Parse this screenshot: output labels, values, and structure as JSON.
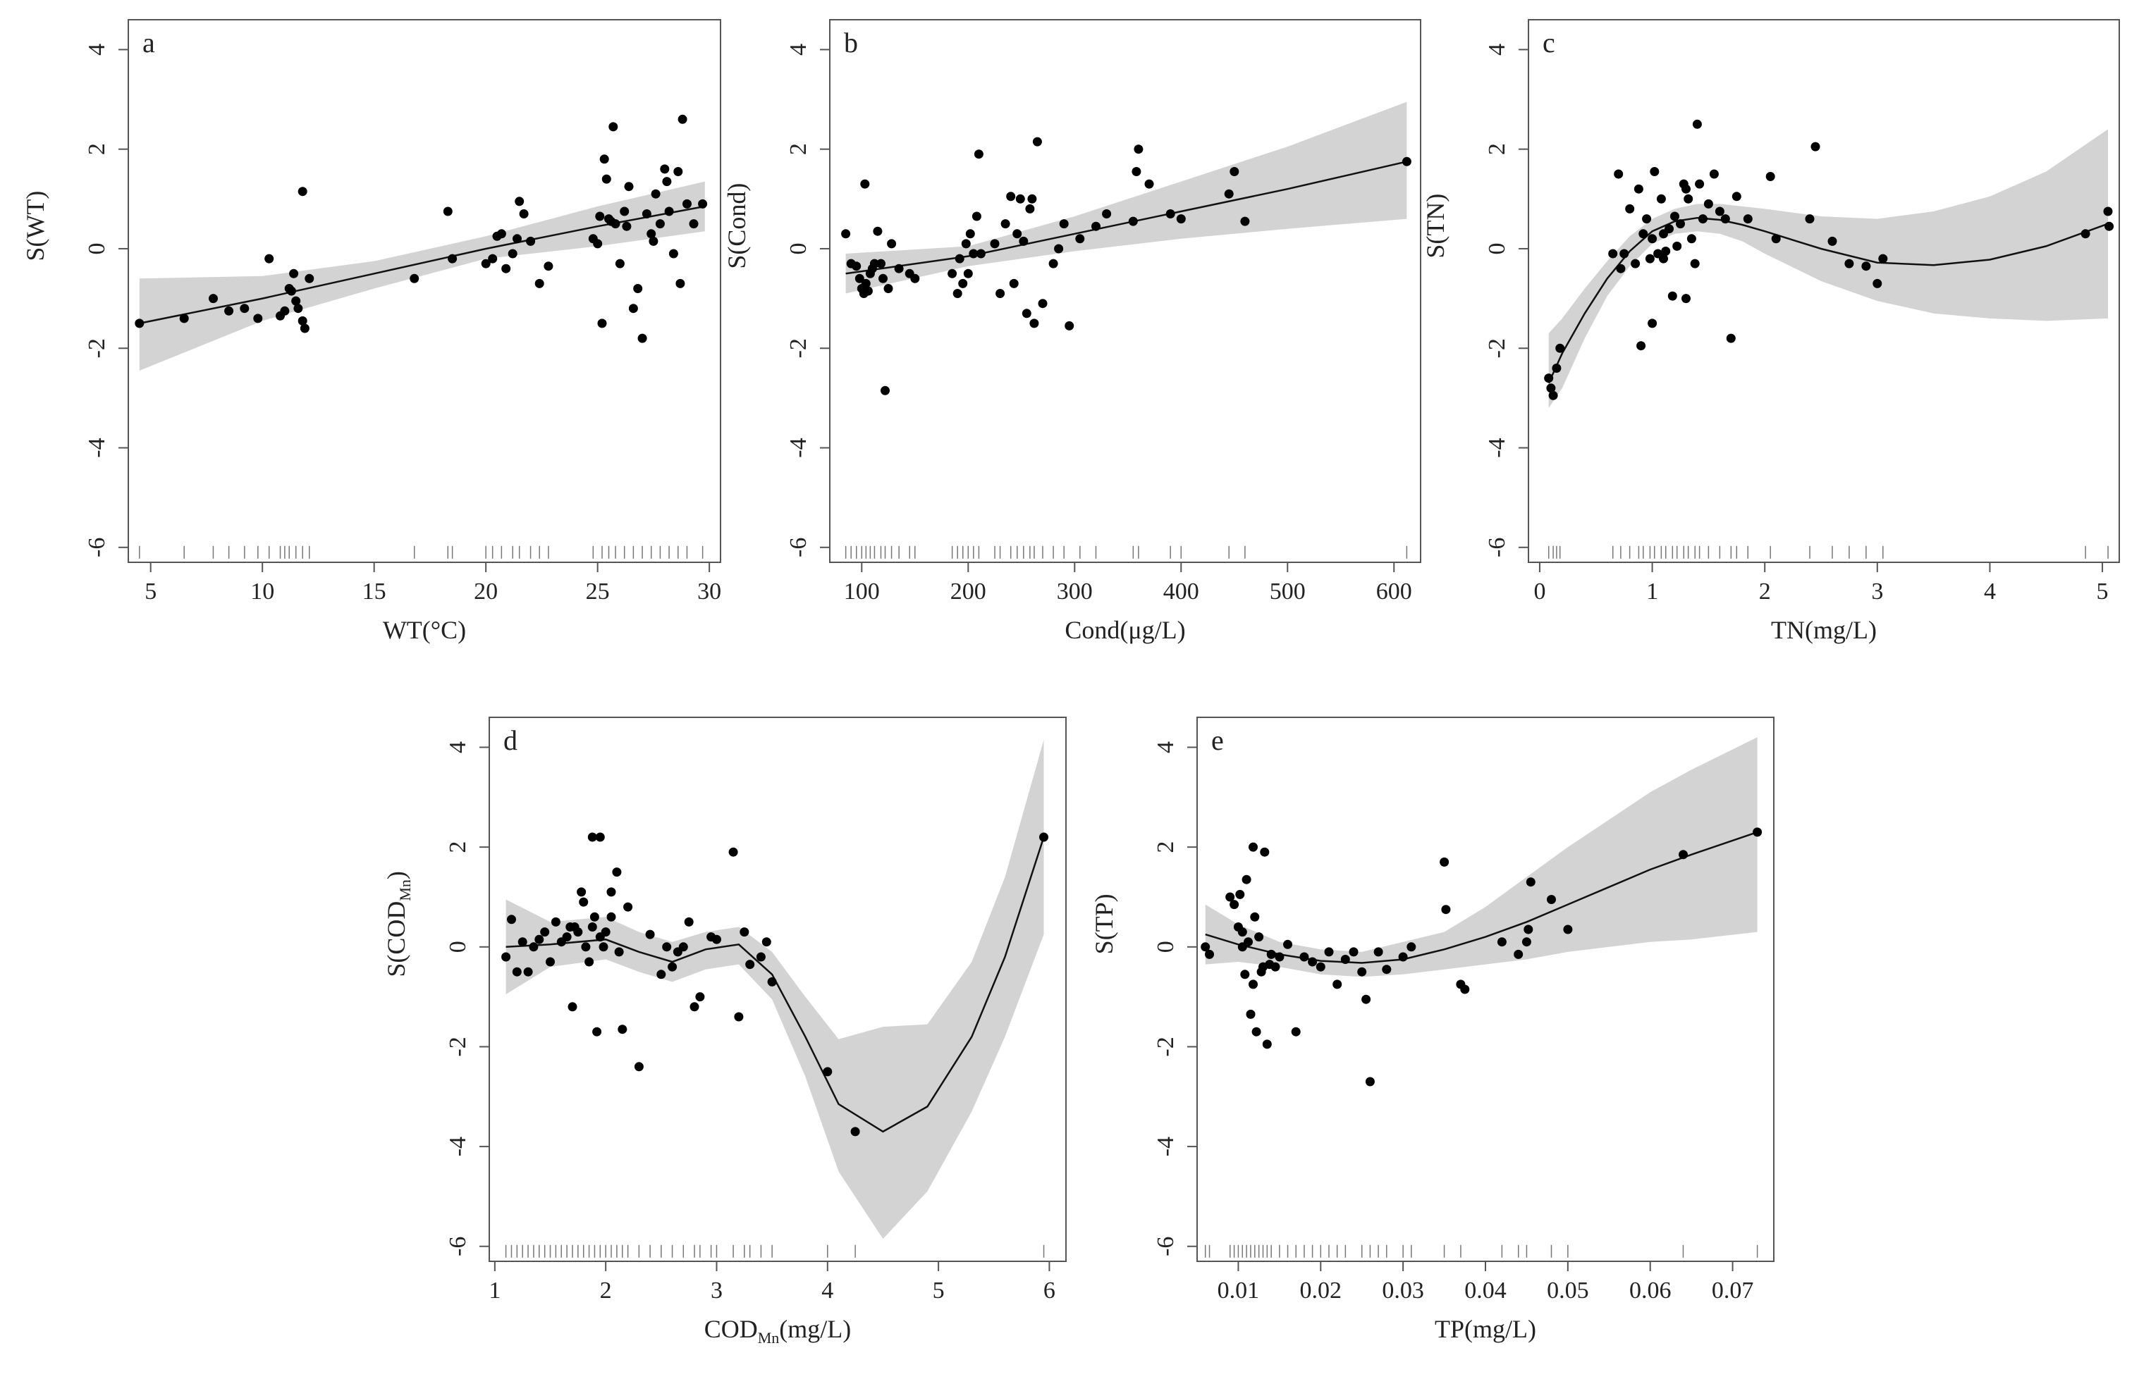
{
  "figure": {
    "colors": {
      "band": "#d3d3d3",
      "line": "#111111",
      "point": "#000000",
      "axis": "#555555",
      "rug": "#777777"
    }
  },
  "chart_data": [
    {
      "type": "scatter",
      "panel_label": "a",
      "xlabel": "WT(°C)",
      "ylabel": "S(WT)",
      "xlim": [
        4,
        30.5
      ],
      "ylim": [
        -6.3,
        4.6
      ],
      "xticks": [
        5,
        10,
        15,
        20,
        25,
        30
      ],
      "yticks": [
        -6,
        -4,
        -2,
        0,
        2,
        4
      ],
      "curve_x": [
        4.5,
        10,
        15,
        20,
        25,
        29.8
      ],
      "curve": [
        -1.5,
        -1.0,
        -0.5,
        0.0,
        0.45,
        0.85
      ],
      "band_upper": [
        -0.6,
        -0.55,
        -0.25,
        0.25,
        0.85,
        1.35
      ],
      "band_lower": [
        -2.45,
        -1.45,
        -0.8,
        -0.2,
        0.05,
        0.35
      ],
      "points_x": [
        4.5,
        6.5,
        7.8,
        8.5,
        9.2,
        9.8,
        10.3,
        10.8,
        11,
        11.2,
        11.3,
        11.5,
        11.6,
        11.8,
        11.9,
        12.1,
        11.8,
        11.4,
        16.8,
        18.3,
        18.5,
        20,
        20.3,
        20.5,
        20.7,
        20.9,
        21.2,
        21.4,
        21.5,
        21.7,
        22,
        22.4,
        22.8,
        24.8,
        25,
        25.2,
        25.3,
        25.4,
        25.5,
        25.7,
        25.8,
        26,
        26.2,
        26.4,
        26.6,
        26.8,
        27,
        27.2,
        27.4,
        27.6,
        27.8,
        28,
        28.2,
        28.4,
        28.6,
        28.8,
        29,
        29.3,
        29.7,
        25.6,
        26.3,
        27.5,
        28.1,
        28.7,
        25.1
      ],
      "points_y": [
        -1.5,
        -1.4,
        -1.0,
        -1.25,
        -1.2,
        -1.4,
        -0.2,
        -1.35,
        -1.25,
        -0.8,
        -0.85,
        -1.05,
        -1.2,
        -1.45,
        -1.6,
        -0.6,
        1.15,
        -0.5,
        -0.6,
        0.75,
        -0.2,
        -0.3,
        -0.2,
        0.25,
        0.3,
        -0.4,
        -0.1,
        0.2,
        0.95,
        0.7,
        0.15,
        -0.7,
        -0.35,
        0.2,
        0.1,
        -1.5,
        1.8,
        1.4,
        0.6,
        2.45,
        0.5,
        -0.3,
        0.75,
        1.25,
        -1.2,
        -0.8,
        -1.8,
        0.7,
        0.3,
        1.1,
        0.5,
        1.6,
        0.75,
        -0.1,
        1.55,
        2.6,
        0.9,
        0.5,
        0.9,
        0.55,
        0.45,
        0.15,
        1.35,
        -0.7,
        0.65
      ],
      "rug": [
        4.5,
        6.5,
        7.8,
        8.5,
        9.2,
        9.8,
        10.3,
        10.8,
        11,
        11.2,
        11.5,
        11.8,
        12.1,
        16.8,
        18.3,
        18.5,
        20,
        20.3,
        20.7,
        21.2,
        21.5,
        22,
        22.4,
        22.8,
        24.8,
        25.2,
        25.5,
        25.8,
        26.2,
        26.6,
        27,
        27.4,
        27.8,
        28.2,
        28.6,
        29,
        29.7
      ]
    },
    {
      "type": "scatter",
      "panel_label": "b",
      "xlabel": "Cond(μg/L)",
      "ylabel": "S(Cond)",
      "xlim": [
        70,
        625
      ],
      "ylim": [
        -6.3,
        4.6
      ],
      "xticks": [
        100,
        200,
        300,
        400,
        500,
        600
      ],
      "yticks": [
        -6,
        -4,
        -2,
        0,
        2,
        4
      ],
      "curve_x": [
        85,
        200,
        300,
        400,
        500,
        612
      ],
      "curve": [
        -0.5,
        -0.15,
        0.3,
        0.75,
        1.2,
        1.75
      ],
      "band_upper": [
        -0.1,
        0.05,
        0.65,
        1.35,
        2.05,
        2.95
      ],
      "band_lower": [
        -0.9,
        -0.35,
        -0.05,
        0.2,
        0.4,
        0.6
      ],
      "points_x": [
        85,
        90,
        95,
        98,
        100,
        102,
        104,
        106,
        108,
        110,
        112,
        115,
        118,
        120,
        122,
        125,
        128,
        135,
        145,
        150,
        185,
        190,
        192,
        195,
        198,
        200,
        202,
        205,
        208,
        210,
        212,
        225,
        230,
        235,
        240,
        243,
        246,
        249,
        252,
        255,
        258,
        260,
        262,
        265,
        270,
        280,
        285,
        290,
        295,
        305,
        320,
        330,
        355,
        358,
        360,
        370,
        390,
        400,
        445,
        450,
        460,
        612,
        103
      ],
      "points_y": [
        0.3,
        -0.3,
        -0.35,
        -0.6,
        -0.8,
        -0.9,
        -0.7,
        -0.85,
        -0.5,
        -0.4,
        -0.3,
        0.35,
        -0.3,
        -0.6,
        -2.85,
        -0.8,
        0.1,
        -0.4,
        -0.5,
        -0.6,
        -0.5,
        -0.9,
        -0.2,
        -0.7,
        0.1,
        -0.5,
        0.3,
        -0.1,
        0.65,
        1.9,
        -0.1,
        0.1,
        -0.9,
        0.5,
        1.05,
        -0.7,
        0.3,
        1.0,
        0.15,
        -1.3,
        0.8,
        1.0,
        -1.5,
        2.15,
        -1.1,
        -0.3,
        0.0,
        0.5,
        -1.55,
        0.2,
        0.45,
        0.7,
        0.55,
        1.55,
        2.0,
        1.3,
        0.7,
        0.6,
        1.1,
        1.55,
        0.55,
        1.75,
        1.3
      ],
      "rug": [
        85,
        90,
        95,
        100,
        104,
        108,
        112,
        118,
        122,
        128,
        135,
        145,
        150,
        185,
        190,
        195,
        200,
        205,
        210,
        225,
        230,
        240,
        246,
        252,
        258,
        262,
        270,
        280,
        290,
        305,
        320,
        355,
        360,
        390,
        400,
        445,
        460,
        612
      ]
    },
    {
      "type": "scatter",
      "panel_label": "c",
      "xlabel": "TN(mg/L)",
      "ylabel": "S(TN)",
      "xlim": [
        -0.1,
        5.15
      ],
      "ylim": [
        -6.3,
        4.6
      ],
      "xticks": [
        0,
        1,
        2,
        3,
        4,
        5
      ],
      "yticks": [
        -6,
        -4,
        -2,
        0,
        2,
        4
      ],
      "curve_x": [
        0.08,
        0.2,
        0.4,
        0.6,
        0.8,
        1.0,
        1.2,
        1.4,
        1.6,
        1.8,
        2.0,
        2.5,
        3.0,
        3.5,
        4.0,
        4.5,
        5.05
      ],
      "curve": [
        -2.7,
        -2.1,
        -1.3,
        -0.6,
        -0.05,
        0.35,
        0.55,
        0.62,
        0.58,
        0.48,
        0.35,
        0.0,
        -0.28,
        -0.33,
        -0.22,
        0.05,
        0.5
      ],
      "band_upper": [
        -1.7,
        -1.4,
        -0.8,
        -0.25,
        0.25,
        0.6,
        0.8,
        0.9,
        0.9,
        0.85,
        0.8,
        0.65,
        0.6,
        0.75,
        1.05,
        1.55,
        2.4
      ],
      "band_lower": [
        -3.2,
        -2.8,
        -1.8,
        -0.95,
        -0.35,
        0.1,
        0.3,
        0.35,
        0.3,
        0.15,
        -0.1,
        -0.65,
        -1.05,
        -1.3,
        -1.4,
        -1.45,
        -1.4
      ],
      "points_x": [
        0.08,
        0.1,
        0.12,
        0.15,
        0.18,
        0.65,
        0.7,
        0.72,
        0.75,
        0.8,
        0.85,
        0.88,
        0.9,
        0.92,
        0.95,
        0.98,
        1.0,
        1.02,
        1.05,
        1.08,
        1.1,
        1.12,
        1.15,
        1.18,
        1.2,
        1.22,
        1.25,
        1.28,
        1.3,
        1.32,
        1.35,
        1.38,
        1.4,
        1.42,
        1.45,
        1.5,
        1.55,
        1.6,
        1.65,
        1.7,
        1.75,
        1.85,
        2.05,
        2.1,
        2.4,
        2.45,
        2.6,
        2.75,
        2.9,
        3.0,
        3.05,
        4.85,
        5.05,
        5.06,
        1.0,
        1.1,
        1.3
      ],
      "points_y": [
        -2.6,
        -2.8,
        -2.95,
        -2.4,
        -2.0,
        -0.1,
        1.5,
        -0.4,
        -0.1,
        0.8,
        -0.3,
        1.2,
        -1.95,
        0.3,
        0.6,
        -0.2,
        0.2,
        1.55,
        -0.1,
        1.0,
        0.3,
        -0.05,
        0.4,
        -0.95,
        0.65,
        0.05,
        0.5,
        1.3,
        -1.0,
        1.0,
        0.2,
        -0.3,
        2.5,
        1.3,
        0.6,
        0.9,
        1.5,
        0.75,
        0.6,
        -1.8,
        1.05,
        0.6,
        1.45,
        0.2,
        0.6,
        2.05,
        0.15,
        -0.3,
        -0.35,
        -0.7,
        -0.2,
        0.3,
        0.75,
        0.45,
        -1.5,
        -0.2,
        1.2
      ],
      "rug": [
        0.08,
        0.12,
        0.15,
        0.18,
        0.65,
        0.72,
        0.8,
        0.88,
        0.92,
        0.98,
        1.02,
        1.08,
        1.12,
        1.18,
        1.22,
        1.28,
        1.32,
        1.38,
        1.42,
        1.5,
        1.6,
        1.7,
        1.75,
        1.85,
        2.05,
        2.4,
        2.6,
        2.75,
        2.9,
        3.05,
        4.85,
        5.05
      ]
    },
    {
      "type": "scatter",
      "panel_label": "d",
      "xlabel": "COD",
      "xlabel_sub": "Mn",
      "xlabel_unit": "(mg/L)",
      "ylabel": "S(COD",
      "ylabel_sub": "Mn",
      "ylabel_close": ")",
      "xlim": [
        0.95,
        6.15
      ],
      "ylim": [
        -6.3,
        4.6
      ],
      "xticks": [
        1,
        2,
        3,
        4,
        5,
        6
      ],
      "yticks": [
        -6,
        -4,
        -2,
        0,
        2,
        4
      ],
      "curve_x": [
        1.1,
        1.5,
        2.0,
        2.3,
        2.6,
        2.9,
        3.2,
        3.5,
        3.8,
        4.1,
        4.5,
        4.9,
        5.3,
        5.6,
        5.95
      ],
      "curve": [
        0.0,
        0.05,
        0.15,
        -0.1,
        -0.3,
        -0.05,
        0.05,
        -0.55,
        -1.8,
        -3.15,
        -3.7,
        -3.2,
        -1.8,
        -0.2,
        2.2
      ],
      "band_upper": [
        0.95,
        0.5,
        0.6,
        0.3,
        0.1,
        0.3,
        0.4,
        -0.1,
        -1.0,
        -1.85,
        -1.6,
        -1.55,
        -0.3,
        1.4,
        4.15
      ],
      "band_lower": [
        -0.95,
        -0.4,
        -0.25,
        -0.5,
        -0.7,
        -0.45,
        -0.35,
        -1.05,
        -2.6,
        -4.5,
        -5.85,
        -4.9,
        -3.3,
        -1.8,
        0.25
      ],
      "points_x": [
        1.1,
        1.15,
        1.2,
        1.25,
        1.3,
        1.35,
        1.4,
        1.45,
        1.5,
        1.55,
        1.6,
        1.65,
        1.7,
        1.72,
        1.75,
        1.78,
        1.8,
        1.82,
        1.85,
        1.88,
        1.9,
        1.92,
        1.95,
        1.98,
        2.0,
        2.05,
        2.1,
        2.15,
        2.2,
        2.3,
        2.4,
        2.5,
        2.55,
        2.6,
        2.65,
        2.7,
        2.75,
        2.8,
        2.85,
        2.95,
        3.0,
        3.15,
        3.2,
        3.25,
        3.3,
        3.4,
        3.45,
        3.5,
        4.0,
        4.25,
        5.95,
        1.88,
        1.95,
        2.05,
        2.12,
        1.68
      ],
      "points_y": [
        -0.2,
        0.55,
        -0.5,
        0.1,
        -0.5,
        0.0,
        0.15,
        0.3,
        -0.3,
        0.5,
        0.1,
        0.2,
        -1.2,
        0.4,
        0.3,
        1.1,
        0.9,
        0.0,
        -0.3,
        0.4,
        0.6,
        -1.7,
        0.2,
        0.0,
        0.3,
        0.6,
        1.5,
        -1.65,
        0.8,
        -2.4,
        0.25,
        -0.55,
        0.0,
        -0.4,
        -0.1,
        0.0,
        0.5,
        -1.2,
        -1.0,
        0.2,
        0.15,
        1.9,
        -1.4,
        0.3,
        -0.35,
        -0.2,
        0.1,
        -0.7,
        -2.5,
        -3.7,
        2.2,
        2.2,
        2.2,
        1.1,
        -0.1,
        0.4
      ],
      "rug": [
        1.1,
        1.15,
        1.2,
        1.25,
        1.3,
        1.35,
        1.4,
        1.45,
        1.5,
        1.55,
        1.6,
        1.65,
        1.7,
        1.75,
        1.8,
        1.85,
        1.9,
        1.95,
        2.0,
        2.05,
        2.1,
        2.15,
        2.2,
        2.3,
        2.4,
        2.5,
        2.6,
        2.7,
        2.8,
        2.85,
        2.95,
        3.0,
        3.15,
        3.25,
        3.3,
        3.4,
        3.5,
        4.0,
        4.25,
        5.95
      ]
    },
    {
      "type": "scatter",
      "panel_label": "e",
      "xlabel": "TP(mg/L)",
      "ylabel": "S(TP)",
      "xlim": [
        0.005,
        0.075
      ],
      "ylim": [
        -6.3,
        4.6
      ],
      "xticks": [
        0.01,
        0.02,
        0.03,
        0.04,
        0.05,
        0.06,
        0.07
      ],
      "xtick_labels": [
        "0.01",
        "0.02",
        "0.03",
        "0.04",
        "0.05",
        "0.06",
        "0.07"
      ],
      "yticks": [
        -6,
        -4,
        -2,
        0,
        2,
        4
      ],
      "curve_x": [
        0.006,
        0.01,
        0.015,
        0.02,
        0.025,
        0.03,
        0.035,
        0.04,
        0.045,
        0.05,
        0.055,
        0.06,
        0.065,
        0.073
      ],
      "curve": [
        0.25,
        0.05,
        -0.15,
        -0.28,
        -0.32,
        -0.25,
        -0.05,
        0.2,
        0.5,
        0.85,
        1.2,
        1.55,
        1.85,
        2.3
      ],
      "band_upper": [
        0.85,
        0.45,
        0.1,
        -0.05,
        -0.1,
        0.1,
        0.3,
        0.8,
        1.4,
        2.0,
        2.55,
        3.1,
        3.55,
        4.2
      ],
      "band_lower": [
        -0.35,
        -0.3,
        -0.4,
        -0.55,
        -0.6,
        -0.55,
        -0.45,
        -0.35,
        -0.25,
        -0.1,
        0.0,
        0.1,
        0.15,
        0.3
      ],
      "points_x": [
        0.006,
        0.0065,
        0.009,
        0.0095,
        0.01,
        0.0102,
        0.0105,
        0.0108,
        0.011,
        0.0112,
        0.0115,
        0.0118,
        0.012,
        0.0122,
        0.0125,
        0.0128,
        0.013,
        0.0132,
        0.0135,
        0.0138,
        0.014,
        0.0145,
        0.015,
        0.016,
        0.017,
        0.018,
        0.019,
        0.02,
        0.021,
        0.022,
        0.023,
        0.024,
        0.025,
        0.0255,
        0.026,
        0.027,
        0.028,
        0.03,
        0.031,
        0.035,
        0.0352,
        0.037,
        0.0375,
        0.042,
        0.044,
        0.045,
        0.0452,
        0.0455,
        0.048,
        0.05,
        0.064,
        0.073,
        0.0105,
        0.0118
      ],
      "points_y": [
        0.0,
        -0.15,
        1.0,
        0.85,
        0.4,
        1.05,
        0.0,
        -0.55,
        1.35,
        0.1,
        -1.35,
        -0.75,
        0.6,
        -1.7,
        0.2,
        -0.5,
        -0.4,
        1.9,
        -1.95,
        -0.35,
        -0.15,
        -0.4,
        -0.2,
        0.05,
        -1.7,
        -0.2,
        -0.3,
        -0.4,
        -0.1,
        -0.75,
        -0.25,
        -0.1,
        -0.5,
        -1.05,
        -2.7,
        -0.1,
        -0.45,
        -0.2,
        0.0,
        1.7,
        0.75,
        -0.75,
        -0.85,
        0.1,
        -0.15,
        0.1,
        0.35,
        1.3,
        0.95,
        0.35,
        1.85,
        2.3,
        0.3,
        2.0
      ],
      "rug": [
        0.006,
        0.0065,
        0.009,
        0.0095,
        0.01,
        0.0105,
        0.011,
        0.0115,
        0.012,
        0.0125,
        0.013,
        0.0135,
        0.014,
        0.015,
        0.016,
        0.017,
        0.018,
        0.019,
        0.02,
        0.021,
        0.022,
        0.023,
        0.025,
        0.026,
        0.027,
        0.028,
        0.03,
        0.031,
        0.035,
        0.037,
        0.042,
        0.044,
        0.045,
        0.048,
        0.05,
        0.064,
        0.073
      ]
    }
  ]
}
